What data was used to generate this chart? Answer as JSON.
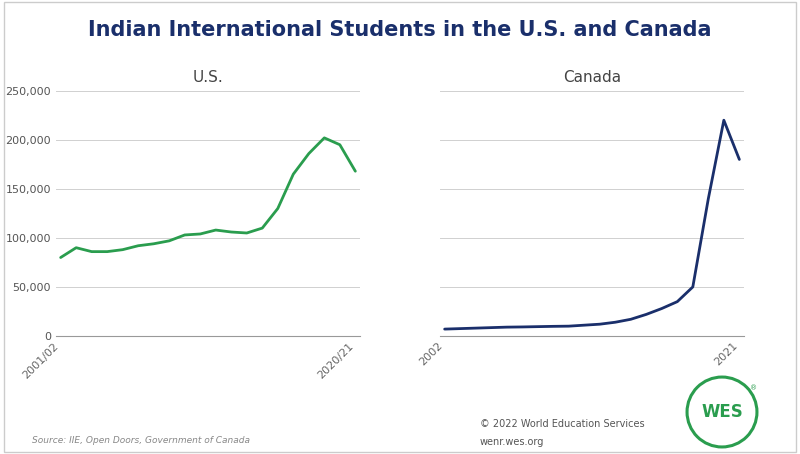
{
  "title": "Indian International Students in the U.S. and Canada",
  "title_color": "#1a2f6b",
  "title_fontsize": 15,
  "subtitle_us": "U.S.",
  "subtitle_canada": "Canada",
  "subtitle_fontsize": 11,
  "source_text": "Source: IIE, Open Doors, Government of Canada",
  "copyright_line1": "© 2022 World Education Services",
  "copyright_line2": "wenr.wes.org",
  "us_x": [
    2001,
    2002,
    2003,
    2004,
    2005,
    2006,
    2007,
    2008,
    2009,
    2010,
    2011,
    2012,
    2013,
    2014,
    2015,
    2016,
    2017,
    2018,
    2019,
    2020
  ],
  "us_y": [
    80000,
    90000,
    86000,
    86000,
    88000,
    92000,
    94000,
    97000,
    103000,
    104000,
    108000,
    106000,
    105000,
    110000,
    130000,
    165000,
    186000,
    202000,
    195000,
    168000
  ],
  "us_x_labels": [
    "2001/02",
    "2020/21"
  ],
  "us_color": "#2a9d4e",
  "canada_x": [
    2002,
    2003,
    2004,
    2005,
    2006,
    2007,
    2008,
    2009,
    2010,
    2011,
    2012,
    2013,
    2014,
    2015,
    2016,
    2017,
    2018,
    2019,
    2020,
    2021
  ],
  "canada_y": [
    7000,
    7500,
    8000,
    8500,
    9000,
    9200,
    9500,
    9800,
    10000,
    11000,
    12000,
    14000,
    17000,
    22000,
    28000,
    35000,
    50000,
    140000,
    220000,
    180000
  ],
  "canada_x_labels": [
    "2002",
    "2021"
  ],
  "canada_color": "#1a2f6b",
  "ylim": [
    0,
    250000
  ],
  "yticks": [
    0,
    50000,
    100000,
    150000,
    200000,
    250000
  ],
  "bg_color": "#ffffff",
  "grid_color": "#d0d0d0",
  "wes_circle_color": "#2a9d4e"
}
